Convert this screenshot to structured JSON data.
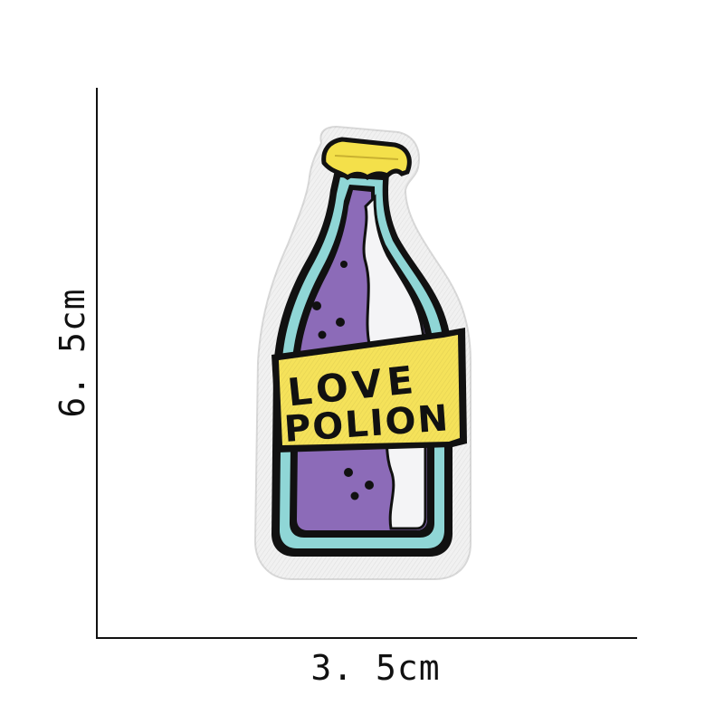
{
  "dimensions": {
    "height_label": "6. 5cm",
    "width_label": "3. 5cm"
  },
  "patch": {
    "label_line1": "LOVE",
    "label_line2": "POLION",
    "colors": {
      "outline": "#111111",
      "border": "#f1f1f1",
      "cap": "#f4e04a",
      "liquid": "#8c6bb8",
      "glass": "#8fd6d6",
      "label": "#f5e25a",
      "highlight": "#f4f4f6"
    }
  }
}
